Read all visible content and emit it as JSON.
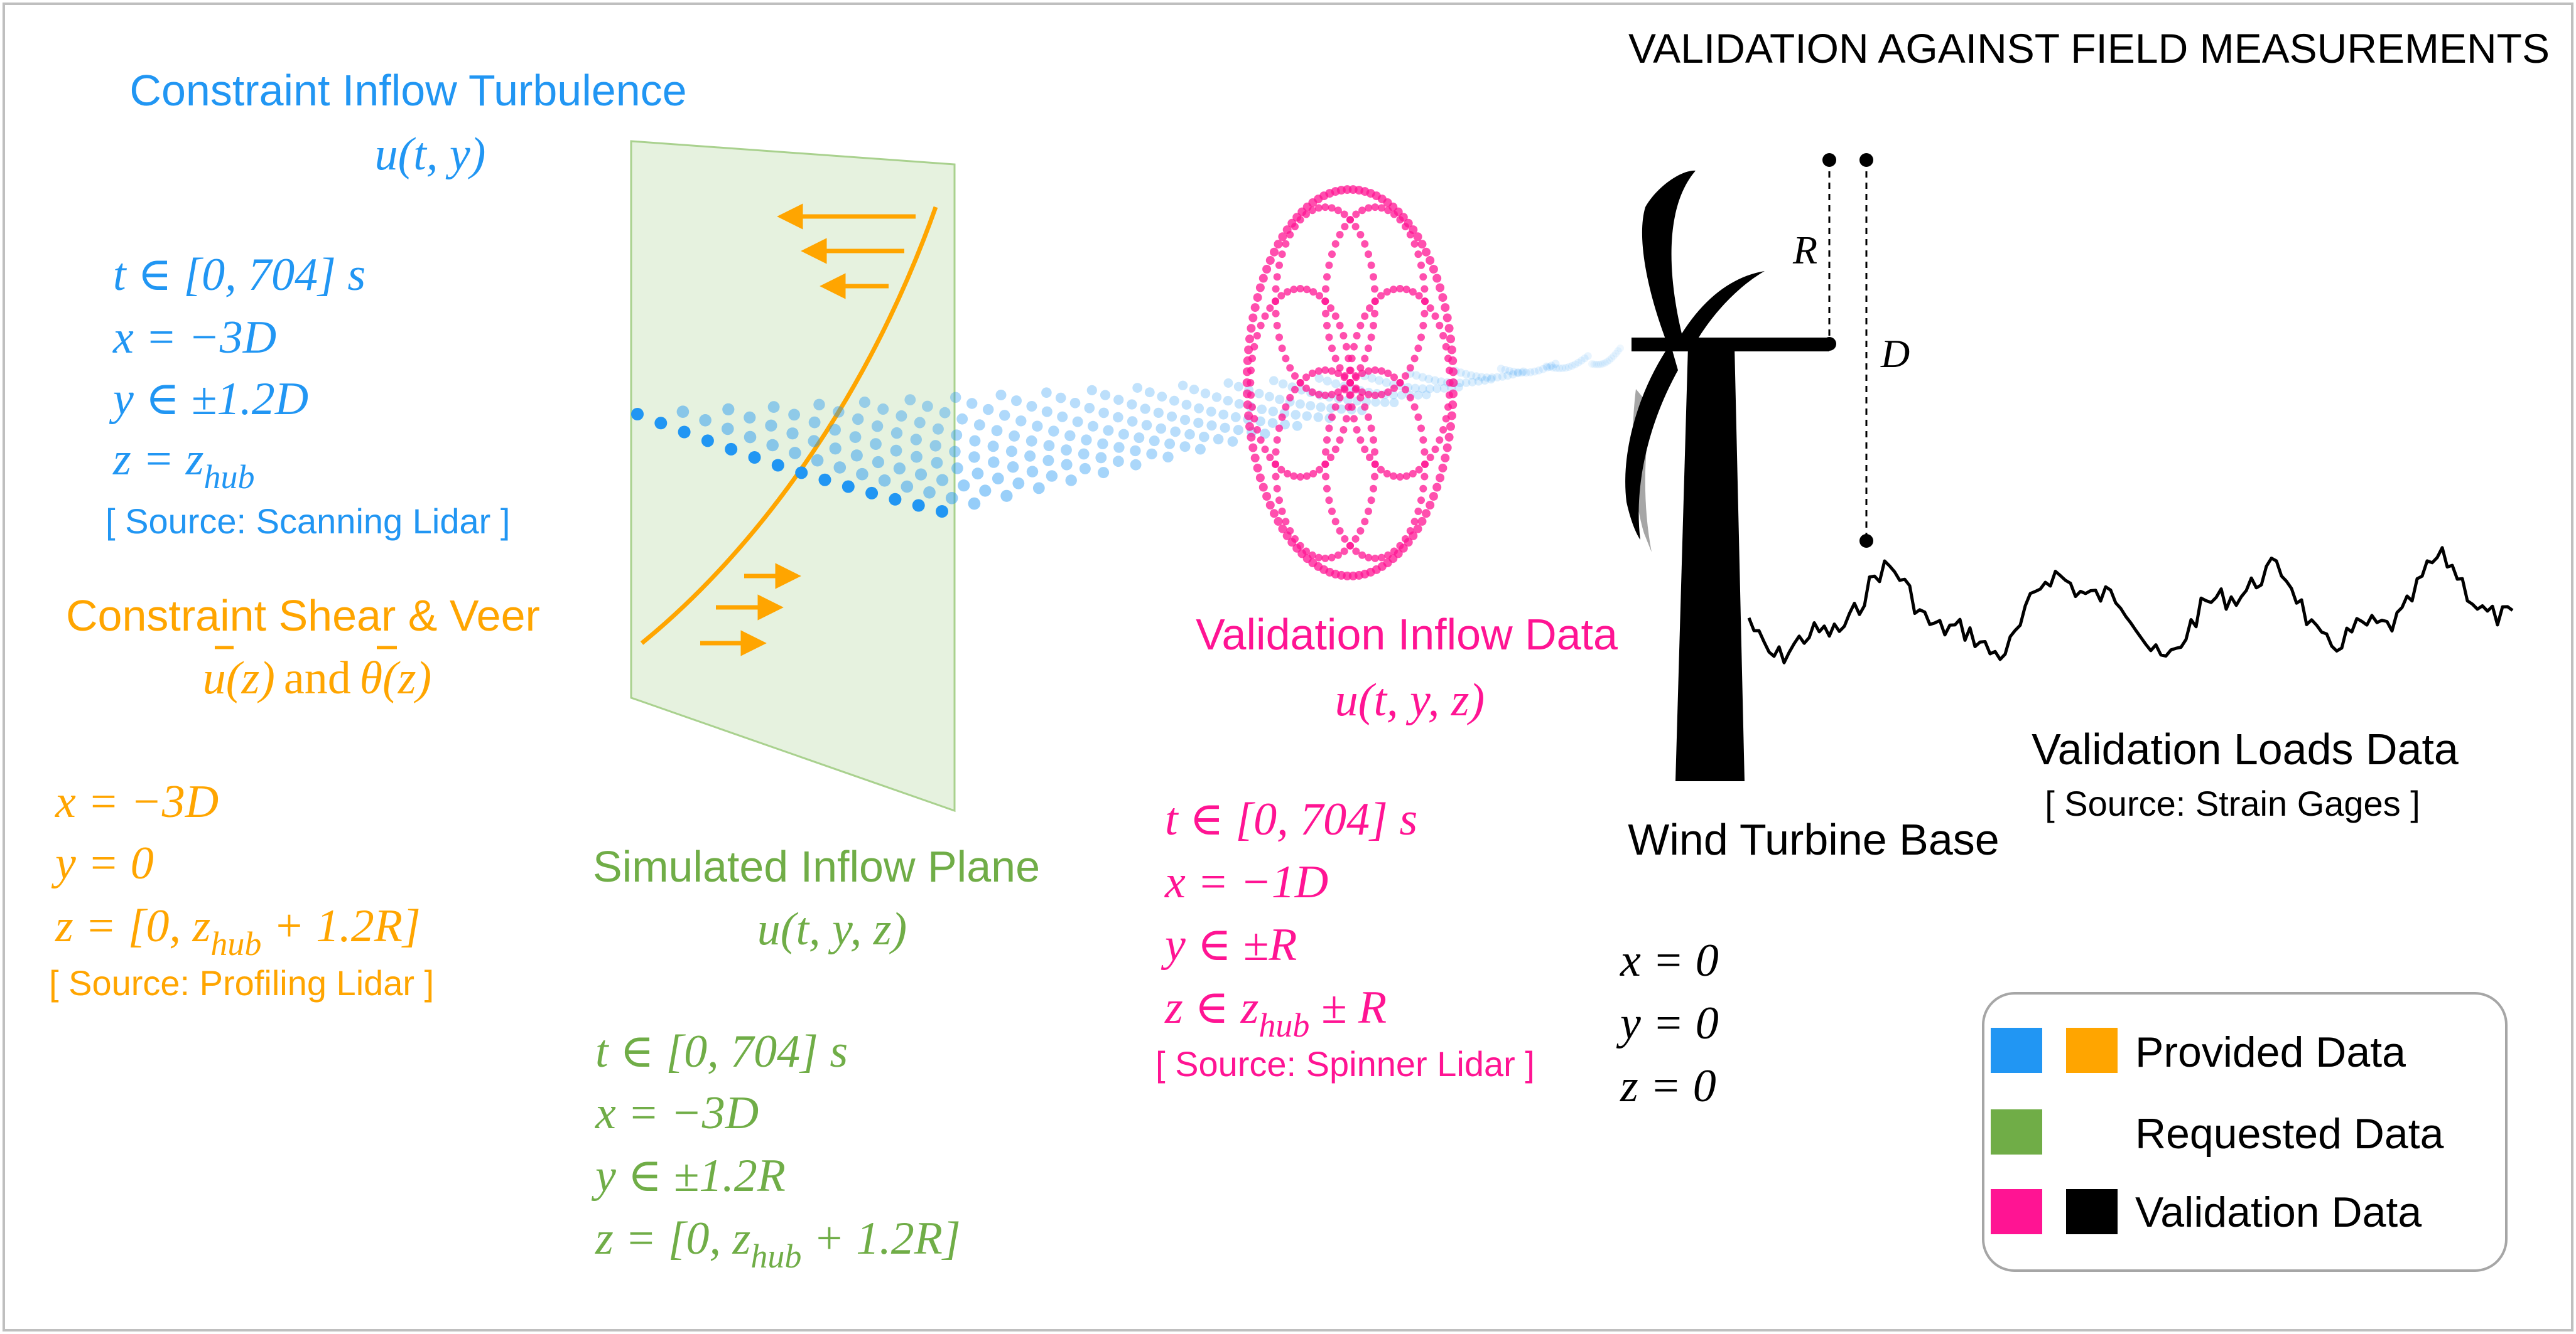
{
  "title": "VALIDATION AGAINST FIELD MEASUREMENTS",
  "colors": {
    "provided_blue": "#2196F3",
    "provided_orange": "#FFA500",
    "requested_green": "#70AD47",
    "validation_pink": "#FF1493",
    "validation_black": "#000000",
    "plane_fill": "#E2F0D9"
  },
  "turbulence": {
    "heading": "Constraint Inflow Turbulence",
    "formula": "u(t, y)",
    "lines": [
      "t ∈ [0, 704] s",
      "x = −3D",
      "y ∈ ±1.2D",
      "z = z"
    ],
    "z_subscript": "hub",
    "source": "[ Source: Scanning Lidar ]"
  },
  "shear": {
    "heading": "Constraint Shear & Veer",
    "formula_u": "u(z)",
    "formula_and": "and",
    "formula_theta": "θ(z)",
    "lines": [
      "x = −3D",
      "y = 0"
    ],
    "z_line_prefix": "z = [0, z",
    "z_subscript": "hub",
    "z_line_suffix": " + 1.2R]",
    "source": "[ Source: Profiling Lidar ]"
  },
  "plane": {
    "heading": "Simulated Inflow Plane",
    "formula": "u(t, y, z)",
    "lines": [
      "t ∈ [0, 704] s",
      "x = −3D",
      "y ∈ ±1.2R"
    ],
    "z_line_prefix": "z = [0, z",
    "z_subscript": "hub",
    "z_line_suffix": " + 1.2R]"
  },
  "validation_inflow": {
    "heading": "Validation Inflow Data",
    "formula": "u(t, y, z)",
    "lines": [
      "t ∈ [0, 704] s",
      "x = −1D",
      "y ∈ ±R"
    ],
    "z_line_prefix": "z ∈ z",
    "z_subscript": "hub",
    "z_line_suffix": " ± R",
    "source": "[ Source: Spinner Lidar ]"
  },
  "turbine": {
    "label": "Wind Turbine Base",
    "lines": [
      "x = 0",
      "y = 0",
      "z = 0"
    ],
    "r_label": "R",
    "d_label": "D"
  },
  "loads": {
    "heading": "Validation Loads Data",
    "source": "[ Source: Strain Gages ]"
  },
  "legend": {
    "items": [
      {
        "label": "Provided Data",
        "colors": [
          "#2196F3",
          "#FFA500"
        ]
      },
      {
        "label": "Requested Data",
        "colors": [
          "#70AD47"
        ]
      },
      {
        "label": "Validation Data",
        "colors": [
          "#FF1493",
          "#000000"
        ]
      }
    ]
  }
}
